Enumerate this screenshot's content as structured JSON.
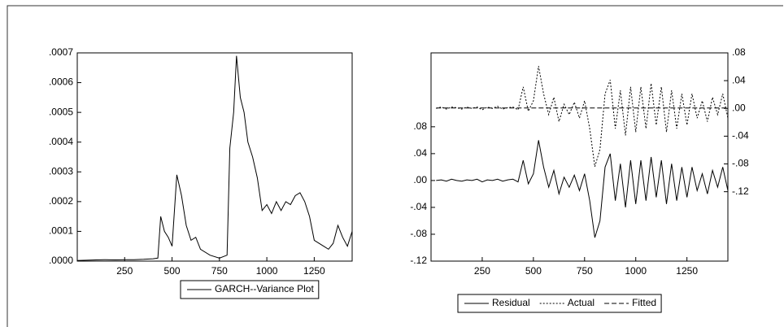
{
  "chart_data": [
    {
      "type": "line",
      "x": [
        0,
        50,
        100,
        150,
        200,
        250,
        300,
        350,
        400,
        425,
        440,
        460,
        480,
        500,
        525,
        550,
        575,
        600,
        625,
        650,
        700,
        750,
        790,
        805,
        825,
        840,
        860,
        880,
        900,
        925,
        950,
        975,
        1000,
        1025,
        1050,
        1075,
        1100,
        1125,
        1150,
        1175,
        1200,
        1225,
        1250,
        1275,
        1300,
        1325,
        1350,
        1375,
        1400,
        1425,
        1450
      ],
      "series": [
        {
          "name": "GARCH--Variance Plot",
          "color": "#000000",
          "dash": "solid",
          "values": [
            2e-06,
            3e-06,
            4e-06,
            5e-06,
            4e-06,
            5e-06,
            5e-06,
            6e-06,
            8e-06,
            1e-05,
            0.00015,
            0.0001,
            8e-05,
            5e-05,
            0.00029,
            0.00022,
            0.00012,
            7e-05,
            8e-05,
            4e-05,
            2e-05,
            1e-05,
            2e-05,
            0.00038,
            0.0005,
            0.00069,
            0.00055,
            0.0005,
            0.0004,
            0.00035,
            0.00028,
            0.00017,
            0.00019,
            0.00016,
            0.0002,
            0.00017,
            0.0002,
            0.00019,
            0.00022,
            0.00023,
            0.0002,
            0.00015,
            7e-05,
            6e-05,
            5e-05,
            4e-05,
            6e-05,
            0.00012,
            8e-05,
            5e-05,
            0.0001
          ]
        }
      ],
      "xlim": [
        0,
        1450
      ],
      "xticks": [
        250,
        500,
        750,
        1000,
        1250
      ],
      "ylim": [
        0,
        0.0007
      ],
      "yticks": [
        {
          "value": 0,
          "label": ".0000"
        },
        {
          "value": 0.0001,
          "label": ".0001"
        },
        {
          "value": 0.0002,
          "label": ".0002"
        },
        {
          "value": 0.0003,
          "label": ".0003"
        },
        {
          "value": 0.0004,
          "label": ".0004"
        },
        {
          "value": 0.0005,
          "label": ".0005"
        },
        {
          "value": 0.0006,
          "label": ".0006"
        },
        {
          "value": 0.0007,
          "label": ".0007"
        }
      ]
    },
    {
      "type": "line",
      "x": [
        25,
        50,
        75,
        100,
        125,
        150,
        175,
        200,
        225,
        250,
        275,
        300,
        325,
        350,
        375,
        400,
        425,
        450,
        475,
        500,
        525,
        550,
        575,
        600,
        625,
        650,
        675,
        700,
        725,
        750,
        775,
        800,
        825,
        850,
        875,
        900,
        925,
        950,
        975,
        1000,
        1025,
        1050,
        1075,
        1100,
        1125,
        1150,
        1175,
        1200,
        1225,
        1250,
        1275,
        1300,
        1325,
        1350,
        1375,
        1400,
        1425,
        1450
      ],
      "series": [
        {
          "name": "Residual",
          "color": "#000000",
          "dash": "solid",
          "axis": "y",
          "values": [
            0,
            0.001,
            -0.001,
            0.002,
            0,
            -0.001,
            0.001,
            0,
            0.002,
            -0.002,
            0.001,
            0,
            0.002,
            -0.001,
            0.001,
            0.002,
            -0.002,
            0.03,
            -0.005,
            0.01,
            0.06,
            0.02,
            -0.01,
            0.015,
            -0.02,
            0.005,
            -0.01,
            0.008,
            -0.015,
            0.01,
            -0.03,
            -0.085,
            -0.06,
            0.02,
            0.04,
            -0.03,
            0.025,
            -0.04,
            0.03,
            -0.035,
            0.03,
            -0.03,
            0.035,
            -0.025,
            0.03,
            -0.035,
            0.025,
            -0.03,
            0.02,
            -0.025,
            0.02,
            -0.015,
            0.01,
            -0.02,
            0.015,
            -0.01,
            0.02,
            -0.015
          ]
        },
        {
          "name": "Actual",
          "color": "#000000",
          "dash": "dotted",
          "axis": "y2",
          "values": [
            0,
            0.002,
            -0.001,
            0.002,
            0.001,
            -0.001,
            0.002,
            0,
            0.002,
            -0.002,
            0.002,
            0,
            0.003,
            -0.001,
            0.001,
            0.002,
            -0.002,
            0.031,
            -0.004,
            0.011,
            0.061,
            0.021,
            -0.009,
            0.016,
            -0.019,
            0.006,
            -0.009,
            0.009,
            -0.014,
            0.011,
            -0.029,
            -0.084,
            -0.059,
            0.021,
            0.041,
            -0.029,
            0.026,
            -0.039,
            0.031,
            -0.034,
            0.031,
            -0.029,
            0.036,
            -0.024,
            0.031,
            -0.034,
            0.026,
            -0.029,
            0.021,
            -0.024,
            0.021,
            -0.014,
            0.011,
            -0.019,
            0.016,
            -0.009,
            0.021,
            -0.014
          ]
        },
        {
          "name": "Fitted",
          "color": "#000000",
          "dash": "dashed",
          "axis": "y2",
          "values": [
            0.0005,
            0.0005,
            0.0005,
            0.0005,
            0.0005,
            0.0005,
            0.0005,
            0.0005,
            0.0005,
            0.0005,
            0.0005,
            0.0005,
            0.0005,
            0.0005,
            0.0005,
            0.0005,
            0.0005,
            0.0005,
            0.0005,
            0.0005,
            0.0005,
            0.0005,
            0.0005,
            0.0005,
            0.0005,
            0.0005,
            0.0005,
            0.0005,
            0.0005,
            0.0005,
            0.0005,
            0.0005,
            0.0005,
            0.0005,
            0.0005,
            0.0005,
            0.0005,
            0.0005,
            0.0005,
            0.0005,
            0.0005,
            0.0005,
            0.0005,
            0.0005,
            0.0005,
            0.0005,
            0.0005,
            0.0005,
            0.0005,
            0.0005,
            0.0005,
            0.0005,
            0.0005,
            0.0005,
            0.0005,
            0.0005,
            0.0005,
            0.0005
          ]
        }
      ],
      "xlim": [
        0,
        1450
      ],
      "xticks": [
        250,
        500,
        750,
        1000,
        1250
      ],
      "ylim": [
        -0.12,
        0.19
      ],
      "yticks": [
        {
          "value": 0.08,
          "label": ".08"
        },
        {
          "value": 0.04,
          "label": ".04"
        },
        {
          "value": 0,
          "label": ".00"
        },
        {
          "value": -0.04,
          "label": "-.04"
        },
        {
          "value": -0.08,
          "label": "-.08"
        },
        {
          "value": -0.12,
          "label": "-.12"
        }
      ],
      "y2lim": [
        -0.22,
        0.08
      ],
      "y2ticks": [
        {
          "value": 0.08,
          "label": ".08"
        },
        {
          "value": 0.04,
          "label": ".04"
        },
        {
          "value": 0,
          "label": ".00"
        },
        {
          "value": -0.04,
          "label": "-.04"
        },
        {
          "value": -0.08,
          "label": "-.08"
        },
        {
          "value": -0.12,
          "label": "-.12"
        }
      ]
    }
  ]
}
